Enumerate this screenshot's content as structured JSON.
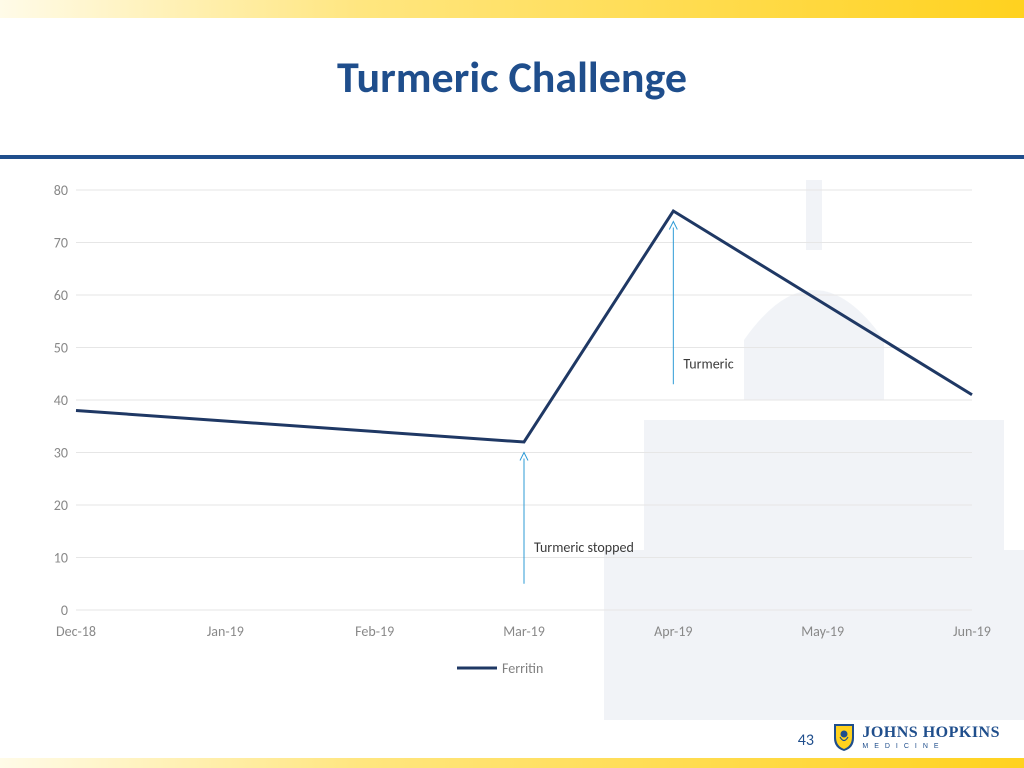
{
  "title": "Turmeric Challenge",
  "slide_number": "43",
  "logo": {
    "main": "JOHNS HOPKINS",
    "sub": "MEDICINE"
  },
  "chart": {
    "type": "line",
    "background_color": "#ffffff",
    "grid_color": "#e6e6e6",
    "categories": [
      "Dec-18",
      "Jan-19",
      "Feb-19",
      "Mar-19",
      "Apr-19",
      "May-19",
      "Jun-19"
    ],
    "series": {
      "name": "Ferritin",
      "color": "#1f3864",
      "line_width": 3,
      "values": [
        38,
        null,
        null,
        32,
        76,
        null,
        41
      ]
    },
    "ylim": [
      0,
      80
    ],
    "ytick_step": 10,
    "label_fontsize": 14,
    "x_label_fontsize": 14,
    "annotations": [
      {
        "label": "Turmeric stopped",
        "x_category": "Mar-19",
        "arrow_from_y": 5,
        "arrow_to_y": 30,
        "label_at_y": 12,
        "label_side": "right",
        "color": "#2e9bd6",
        "text_color": "#3a3a3a"
      },
      {
        "label": "Turmeric",
        "x_category": "Apr-19",
        "arrow_from_y": 43,
        "arrow_to_y": 74,
        "label_at_y": 47,
        "label_side": "right",
        "color": "#2e9bd6",
        "text_color": "#3a3a3a"
      }
    ]
  }
}
